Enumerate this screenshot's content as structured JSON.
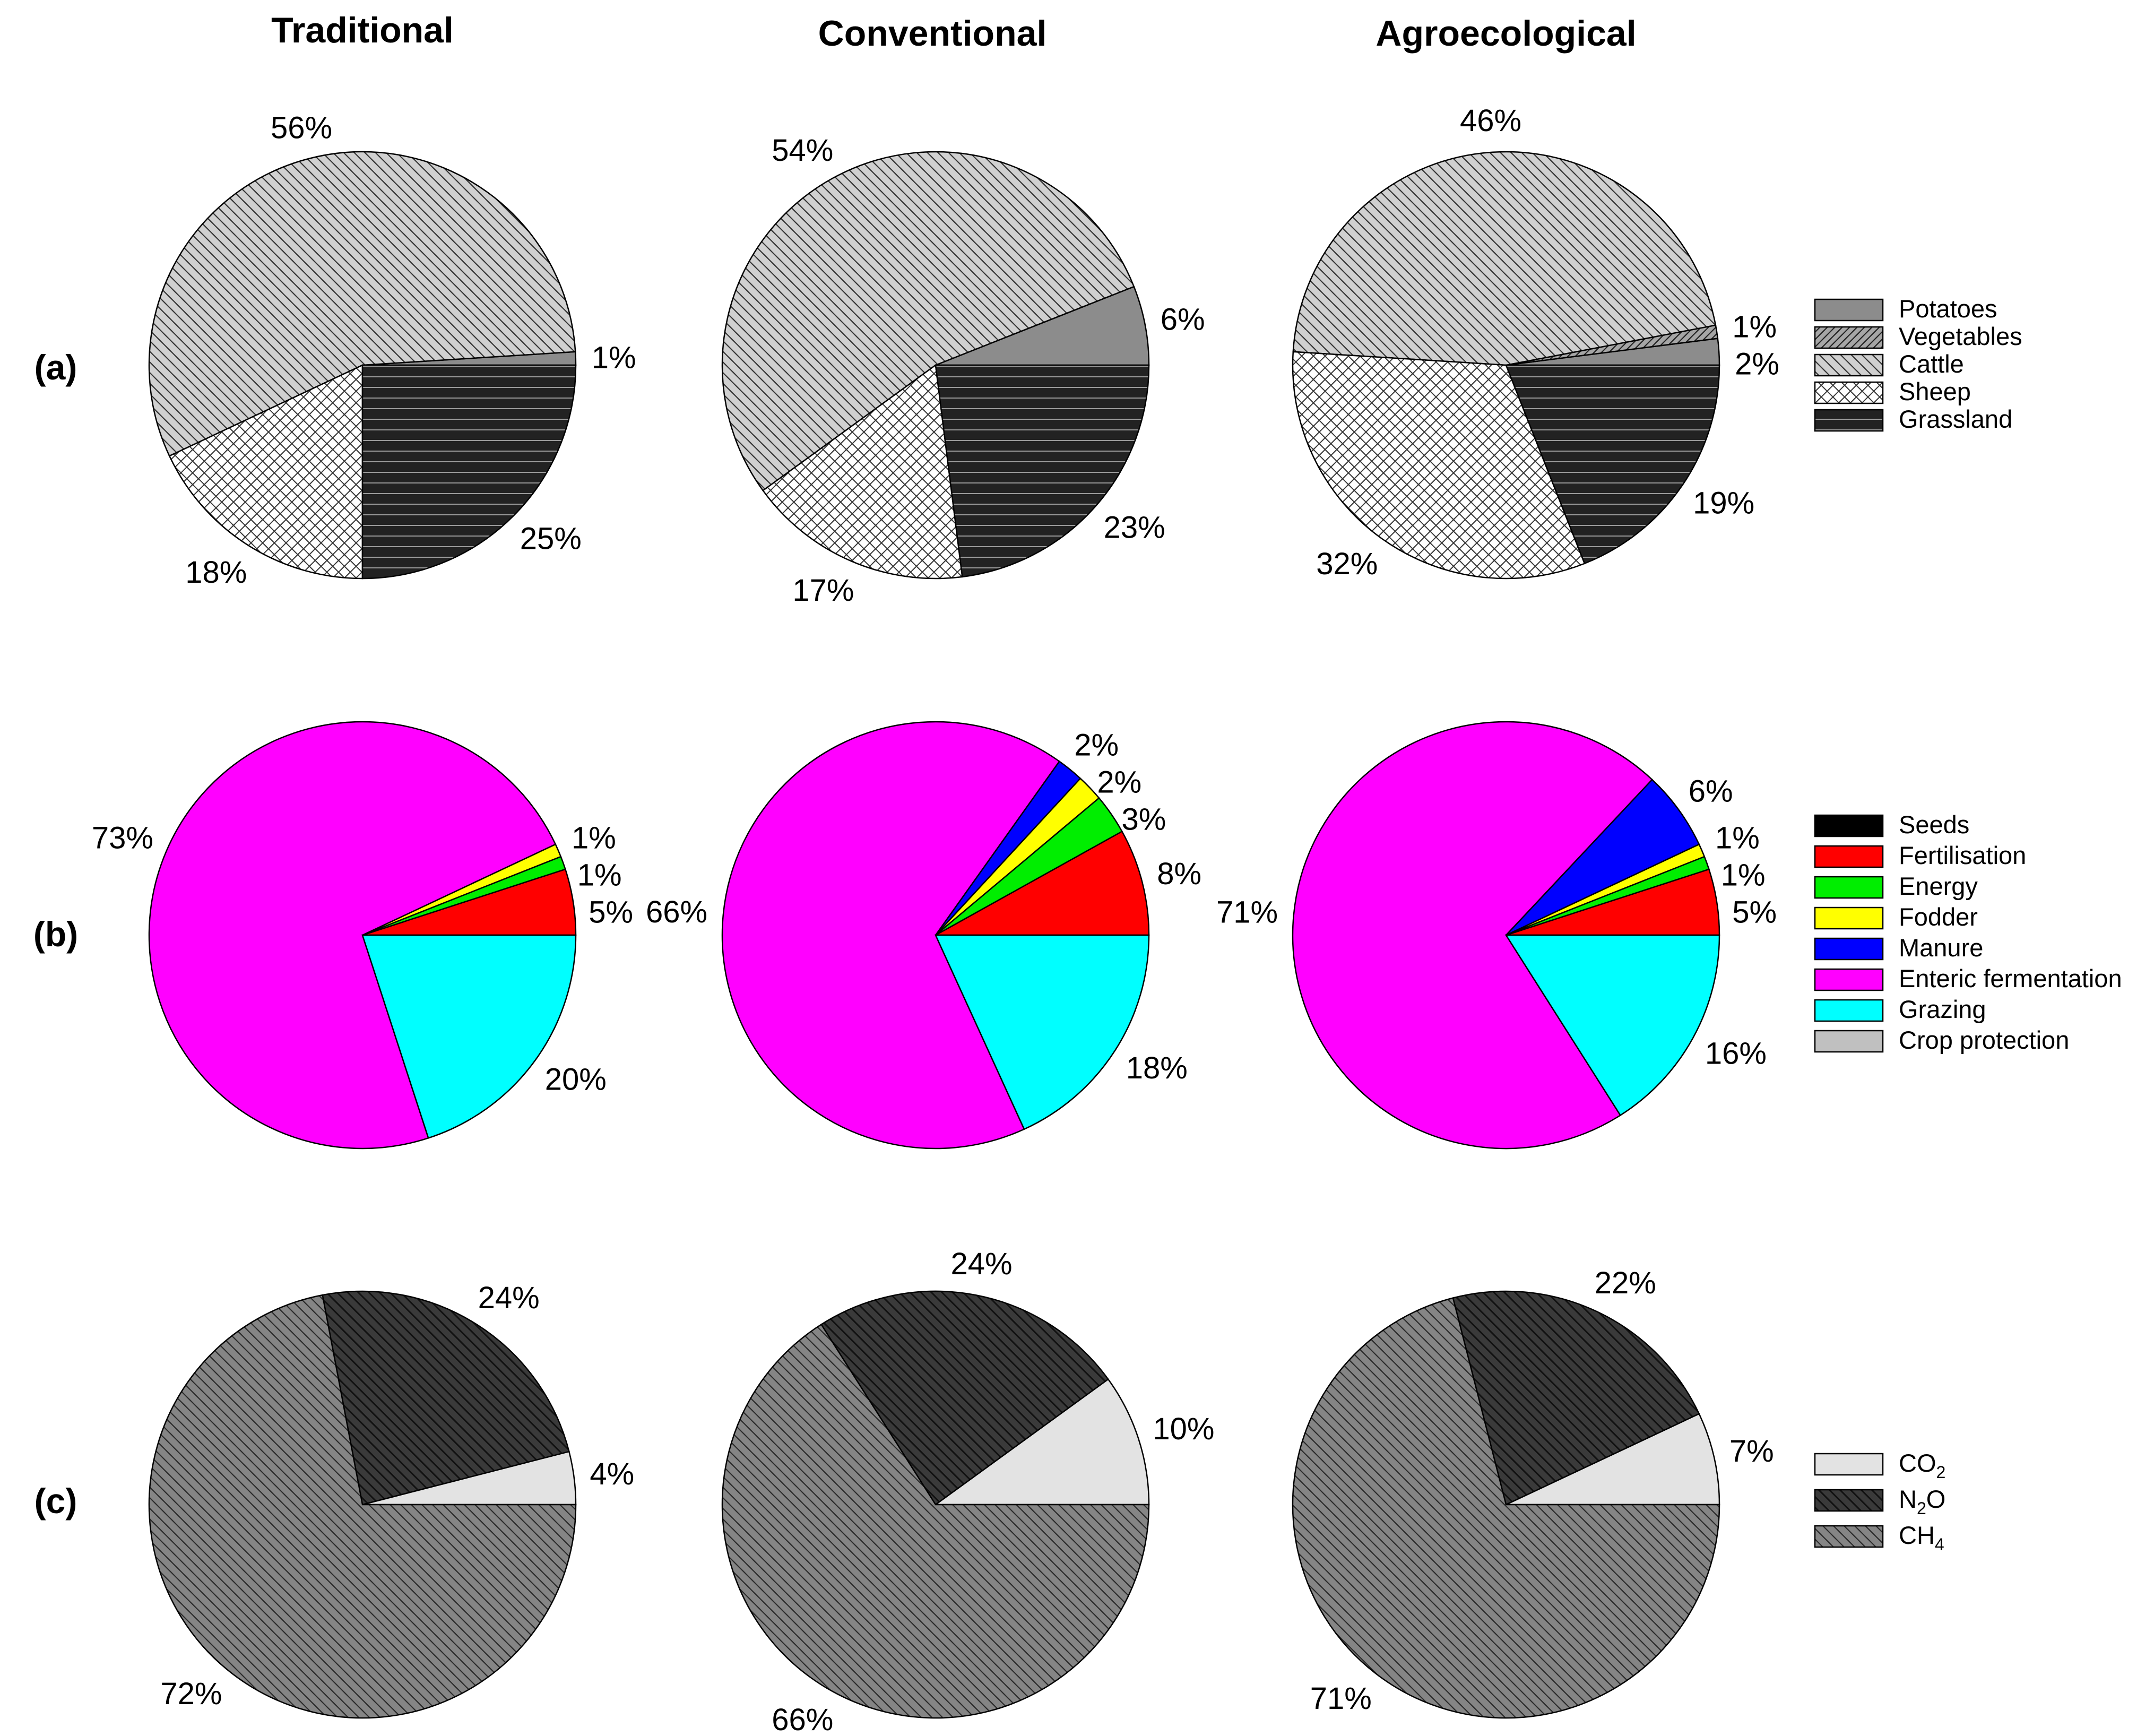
{
  "chart_data": {
    "type": "pie",
    "columns": [
      "Traditional",
      "Conventional",
      "Agroecological"
    ],
    "rows": [
      {
        "label": "(a)",
        "legend": [
          {
            "key": "potatoes",
            "label": "Potatoes"
          },
          {
            "key": "vegetables",
            "label": "Vegetables"
          },
          {
            "key": "cattle",
            "label": "Cattle"
          },
          {
            "key": "sheep",
            "label": "Sheep"
          },
          {
            "key": "grassland",
            "label": "Grassland"
          }
        ],
        "pies": [
          {
            "system": "Traditional",
            "slices": [
              {
                "key": "potatoes",
                "value": 1,
                "label": "1%"
              },
              {
                "key": "cattle",
                "value": 56,
                "label": "56%"
              },
              {
                "key": "sheep",
                "value": 18,
                "label": "18%"
              },
              {
                "key": "grassland",
                "value": 25,
                "label": "25%"
              }
            ]
          },
          {
            "system": "Conventional",
            "slices": [
              {
                "key": "potatoes",
                "value": 6,
                "label": "6%"
              },
              {
                "key": "cattle",
                "value": 54,
                "label": "54%"
              },
              {
                "key": "sheep",
                "value": 17,
                "label": "17%"
              },
              {
                "key": "grassland",
                "value": 23,
                "label": "23%"
              }
            ]
          },
          {
            "system": "Agroecological",
            "slices": [
              {
                "key": "potatoes",
                "value": 2,
                "label": "2%"
              },
              {
                "key": "vegetables",
                "value": 1,
                "label": "1%"
              },
              {
                "key": "cattle",
                "value": 46,
                "label": "46%"
              },
              {
                "key": "sheep",
                "value": 32,
                "label": "32%"
              },
              {
                "key": "grassland",
                "value": 19,
                "label": "19%"
              }
            ]
          }
        ]
      },
      {
        "label": "(b)",
        "legend": [
          {
            "key": "seeds",
            "label": "Seeds"
          },
          {
            "key": "fertilisation",
            "label": "Fertilisation"
          },
          {
            "key": "energy",
            "label": "Energy"
          },
          {
            "key": "fodder",
            "label": "Fodder"
          },
          {
            "key": "manure",
            "label": "Manure"
          },
          {
            "key": "enteric",
            "label": "Enteric fermentation"
          },
          {
            "key": "grazing",
            "label": "Grazing"
          },
          {
            "key": "crop_protection",
            "label": "Crop protection"
          }
        ],
        "pies": [
          {
            "system": "Traditional",
            "slices": [
              {
                "key": "fertilisation",
                "value": 5,
                "label": "5%"
              },
              {
                "key": "energy",
                "value": 1,
                "label": "1%"
              },
              {
                "key": "fodder",
                "value": 1,
                "label": "1%"
              },
              {
                "key": "enteric",
                "value": 73,
                "label": "73%"
              },
              {
                "key": "grazing",
                "value": 20,
                "label": "20%"
              }
            ]
          },
          {
            "system": "Conventional",
            "slices": [
              {
                "key": "fertilisation",
                "value": 8,
                "label": "8%"
              },
              {
                "key": "energy",
                "value": 3,
                "label": "3%"
              },
              {
                "key": "fodder",
                "value": 2,
                "label": "2%"
              },
              {
                "key": "manure",
                "value": 2,
                "label": "2%"
              },
              {
                "key": "enteric",
                "value": 66,
                "label": "66%"
              },
              {
                "key": "grazing",
                "value": 18,
                "label": "18%"
              }
            ]
          },
          {
            "system": "Agroecological",
            "slices": [
              {
                "key": "fertilisation",
                "value": 5,
                "label": "5%"
              },
              {
                "key": "energy",
                "value": 1,
                "label": "1%"
              },
              {
                "key": "fodder",
                "value": 1,
                "label": "1%"
              },
              {
                "key": "manure",
                "value": 6,
                "label": "6%"
              },
              {
                "key": "enteric",
                "value": 71,
                "label": "71%"
              },
              {
                "key": "grazing",
                "value": 16,
                "label": "16%"
              }
            ]
          }
        ]
      },
      {
        "label": "(c)",
        "legend": [
          {
            "key": "co2",
            "label": "CO",
            "sub": "2",
            "tail": ""
          },
          {
            "key": "n2o",
            "label": "N",
            "sub": "2",
            "tail": "O"
          },
          {
            "key": "ch4",
            "label": "CH",
            "sub": "4",
            "tail": ""
          }
        ],
        "pies": [
          {
            "system": "Traditional",
            "slices": [
              {
                "key": "co2",
                "value": 4,
                "label": "4%"
              },
              {
                "key": "n2o",
                "value": 24,
                "label": "24%"
              },
              {
                "key": "ch4",
                "value": 72,
                "label": "72%"
              }
            ]
          },
          {
            "system": "Conventional",
            "slices": [
              {
                "key": "co2",
                "value": 10,
                "label": "10%"
              },
              {
                "key": "n2o",
                "value": 24,
                "label": "24%"
              },
              {
                "key": "ch4",
                "value": 66,
                "label": "66%"
              }
            ]
          },
          {
            "system": "Agroecological",
            "slices": [
              {
                "key": "co2",
                "value": 7,
                "label": "7%"
              },
              {
                "key": "n2o",
                "value": 22,
                "label": "22%"
              },
              {
                "key": "ch4",
                "value": 71,
                "label": "71%"
              }
            ]
          }
        ]
      }
    ],
    "styles": {
      "potatoes": {
        "fill": "#8c8c8c",
        "pattern": "none"
      },
      "vegetables": {
        "fill": "#a6a6a6",
        "pattern": "diag-dense"
      },
      "cattle": {
        "fill": "#d0d0d0",
        "pattern": "diag-back"
      },
      "sheep": {
        "fill": "#ffffff",
        "pattern": "crosshatch"
      },
      "grassland": {
        "fill": "#222222",
        "pattern": "hlines"
      },
      "seeds": {
        "fill": "#000000",
        "pattern": "none"
      },
      "fertilisation": {
        "fill": "#ff0000",
        "pattern": "none"
      },
      "energy": {
        "fill": "#00ee00",
        "pattern": "none"
      },
      "fodder": {
        "fill": "#ffff00",
        "pattern": "none"
      },
      "manure": {
        "fill": "#0000ff",
        "pattern": "none"
      },
      "enteric": {
        "fill": "#ff00ff",
        "pattern": "none"
      },
      "grazing": {
        "fill": "#00ffff",
        "pattern": "none"
      },
      "crop_protection": {
        "fill": "#c0c0c0",
        "pattern": "none"
      },
      "co2": {
        "fill": "#e3e3e3",
        "pattern": "none"
      },
      "n2o": {
        "fill": "#3a3a3a",
        "pattern": "diag-dark"
      },
      "ch4": {
        "fill": "#858585",
        "pattern": "diag-mid"
      }
    }
  }
}
